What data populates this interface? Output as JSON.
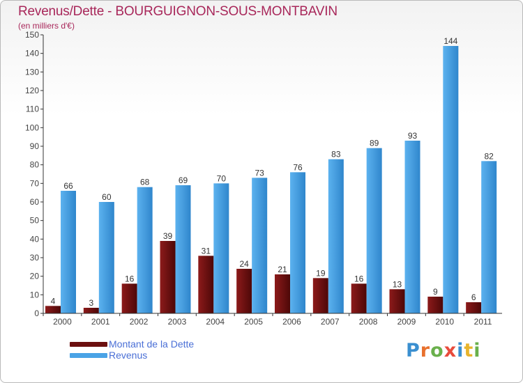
{
  "header": {
    "title": "Revenus/Dette - BOURGUIGNON-SOUS-MONTBAVIN",
    "subtitle": "(en milliers d'€)"
  },
  "legend": {
    "debt_label": "Montant de la Dette",
    "revenue_label": "Revenus"
  },
  "brand": {
    "letters": [
      "P",
      "r",
      "o",
      "x",
      "i",
      "t",
      "i"
    ],
    "letter_colors": [
      "#3a8fd0",
      "#e8712d",
      "#6ab04c",
      "#e84b3c",
      "#3a8fd0",
      "#e8b42d",
      "#6ab04c"
    ]
  },
  "chart_data": {
    "type": "bar",
    "title": "Revenus/Dette - BOURGUIGNON-SOUS-MONTBAVIN",
    "ylabel": "(en milliers d'€)",
    "categories": [
      "2000",
      "2001",
      "2002",
      "2003",
      "2004",
      "2005",
      "2006",
      "2007",
      "2008",
      "2009",
      "2010",
      "2011"
    ],
    "series": [
      {
        "name": "Montant de la Dette",
        "color": "#7a1212",
        "values": [
          4,
          3,
          16,
          39,
          31,
          24,
          21,
          19,
          16,
          13,
          9,
          6
        ]
      },
      {
        "name": "Revenus",
        "color": "#4aa3e6",
        "values": [
          66,
          60,
          68,
          69,
          70,
          73,
          76,
          83,
          89,
          93,
          144,
          82
        ]
      }
    ],
    "ylim": [
      0,
      150
    ],
    "yticks": [
      0,
      10,
      20,
      30,
      40,
      50,
      60,
      70,
      80,
      90,
      100,
      110,
      120,
      130,
      140,
      150
    ],
    "grid": false,
    "legend_position": "bottom-left"
  }
}
